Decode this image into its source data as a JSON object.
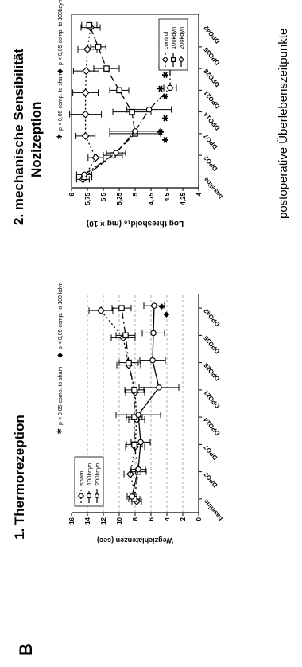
{
  "panel_label": "B",
  "xlabel_shared": "postoperative Überlebenszeitpunkte",
  "chart_data": [
    {
      "type": "line",
      "title": "1. Thermorezeption",
      "ylabel": "Wegziehlatenzen (sec)",
      "xlabel": "",
      "categories": [
        "baseline",
        "DPO2",
        "DPO7",
        "DPO14",
        "DPO21",
        "DPO28",
        "DPO35",
        "DPO42"
      ],
      "ylim": [
        0,
        16
      ],
      "yticks": [
        "0",
        "2",
        "4",
        "6",
        "8",
        "10",
        "12",
        "14",
        "16"
      ],
      "grid": true,
      "legend_position": "top-left",
      "series": [
        {
          "name": "sham",
          "marker": "diamond",
          "dash": "2,3",
          "values": [
            7.8,
            8.6,
            8.0,
            7.8,
            8.0,
            8.8,
            9.5,
            12.3
          ],
          "errors": [
            0.6,
            0.8,
            1.2,
            1.0,
            1.2,
            1.5,
            1.5,
            1.5
          ]
        },
        {
          "name": "100kdyn",
          "marker": "square",
          "dash": "9,4,2,4",
          "values": [
            8.1,
            7.6,
            8.1,
            8.1,
            8.1,
            8.8,
            9.2,
            9.7
          ],
          "errors": [
            0.7,
            1.0,
            1.0,
            1.0,
            1.2,
            1.2,
            1.2,
            1.2
          ]
        },
        {
          "name": "200kdyn",
          "marker": "circle",
          "dash": "",
          "values": [
            8.4,
            7.6,
            7.3,
            7.6,
            5.0,
            5.8,
            5.7,
            5.6
          ],
          "errors": [
            0.6,
            0.9,
            1.2,
            2.8,
            2.5,
            1.6,
            1.4,
            1.3
          ]
        }
      ],
      "annotations": [
        {
          "symbol": "✱",
          "text": "p < 0,05 comp. to sham"
        },
        {
          "symbol": "◆",
          "text": "p < 0,05 comp. to 100 kdyn"
        }
      ],
      "significance": [
        {
          "category": "DPO42",
          "symbol": "◆"
        },
        {
          "category": "DPO42",
          "symbol": "◆"
        }
      ]
    },
    {
      "type": "line",
      "title": "2. mechanische Sensibilität",
      "subtitle": "Nozizeption",
      "ylabel": "Log threshold₁₀ (mg × 10)",
      "xlabel": "",
      "categories": [
        "baseline",
        "DPO2",
        "DPO7",
        "DPO14",
        "DPO21",
        "DPO28",
        "DPO35",
        "DPO42"
      ],
      "ylim": [
        4,
        6
      ],
      "yticks": [
        "4",
        "4,25",
        "4,5",
        "4,75",
        "5",
        "5,25",
        "5,5",
        "5,75",
        "6"
      ],
      "grid": false,
      "legend_position": "bottom-right",
      "series": [
        {
          "name": "control",
          "marker": "diamond",
          "dash": "2,3",
          "values": [
            5.82,
            5.62,
            5.78,
            5.78,
            5.78,
            5.77,
            5.75,
            5.7
          ],
          "errors": [
            0.1,
            0.12,
            0.15,
            0.25,
            0.2,
            0.2,
            0.15,
            0.15
          ]
        },
        {
          "name": "100kdyn",
          "marker": "square",
          "dash": "9,4",
          "values": [
            5.8,
            5.35,
            5.0,
            5.05,
            5.25,
            5.45,
            5.58,
            5.72
          ],
          "errors": [
            0.12,
            0.15,
            0.4,
            0.3,
            0.15,
            0.2,
            0.12,
            0.12
          ]
        },
        {
          "name": "200kdyn",
          "marker": "circle",
          "dash": "9,3,2,3",
          "values": [
            5.8,
            5.3,
            5.0,
            4.78,
            4.45,
            4.45,
            4.45,
            4.4
          ],
          "errors": [
            0.12,
            0.15,
            0.4,
            0.35,
            0.1,
            0.08,
            0.08,
            0.1
          ]
        }
      ],
      "annotations": [
        {
          "symbol": "✱",
          "text": "p < 0,05 comp. to sham"
        },
        {
          "symbol": "◆",
          "text": "p < 0,05 comp. to 100kdyn"
        }
      ],
      "significance": [
        {
          "category": "DPO7",
          "symbol": "✱"
        },
        {
          "category": "DPO7",
          "symbol": "✱"
        },
        {
          "category": "DPO14",
          "symbol": "✱"
        },
        {
          "category": "DPO21",
          "symbol": "✱"
        },
        {
          "category": "DPO21",
          "symbol": "✱"
        },
        {
          "category": "DPO28",
          "symbol": "✱"
        },
        {
          "category": "DPO28",
          "symbol": "◆"
        },
        {
          "category": "DPO35",
          "symbol": "✱"
        },
        {
          "category": "DPO35",
          "symbol": "◆"
        }
      ]
    }
  ]
}
